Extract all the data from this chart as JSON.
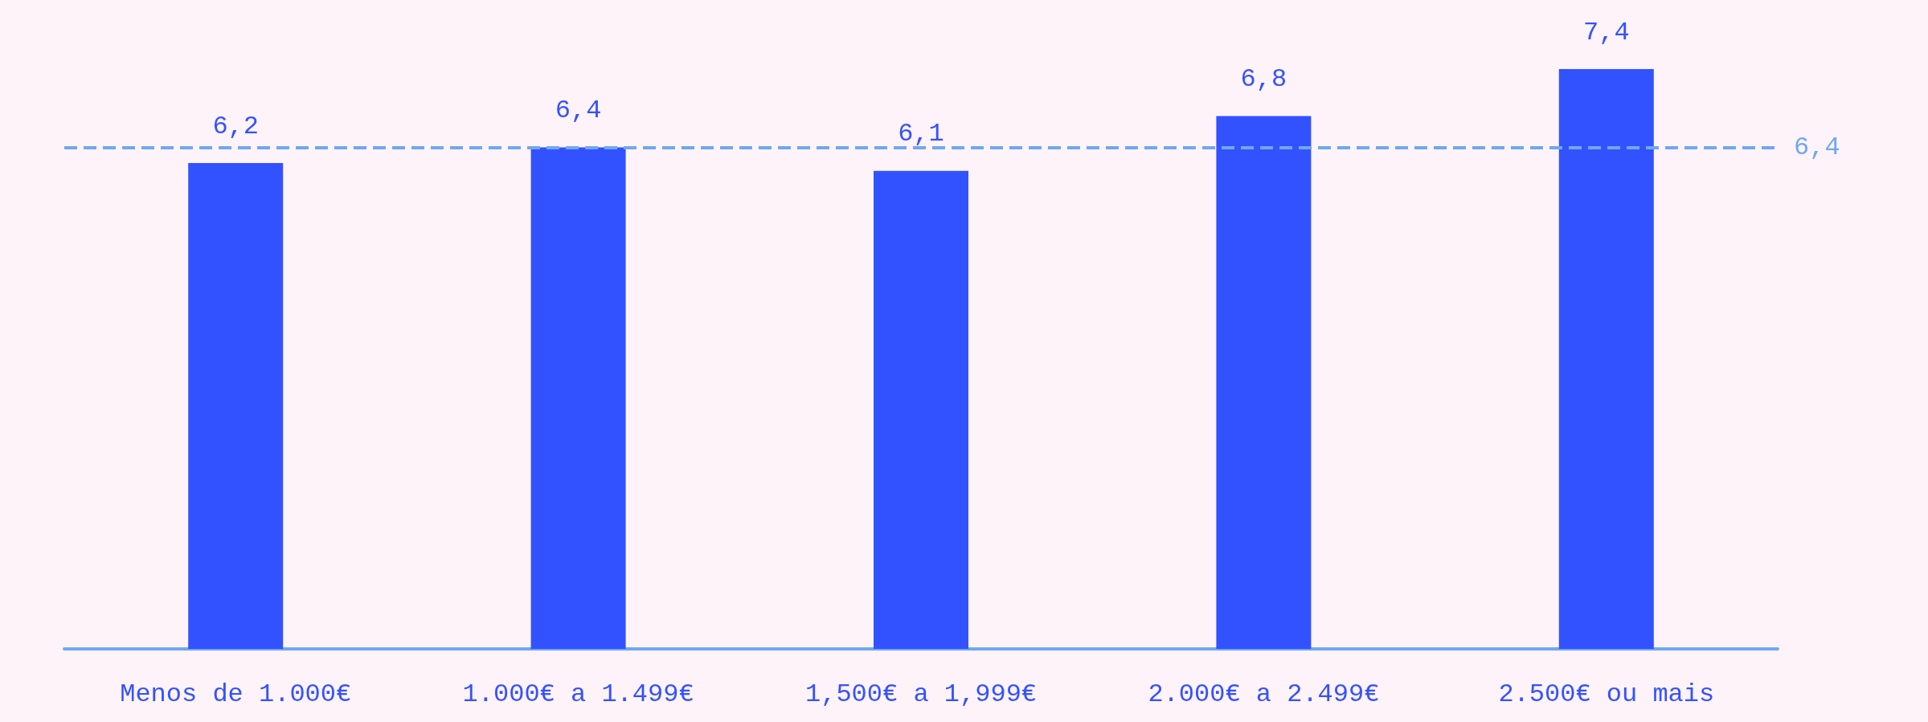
{
  "chart_data": {
    "type": "bar",
    "categories": [
      "Menos de 1.000€",
      "1.000€ a 1.499€",
      "1,500€ a 1,999€",
      "2.000€ a 2.499€",
      "2.500€ ou mais"
    ],
    "values": [
      6.2,
      6.4,
      6.1,
      6.8,
      7.4
    ],
    "value_labels": [
      "6,2",
      "6,4",
      "6,1",
      "6,8",
      "7,4"
    ],
    "color": "#3352ff",
    "ref_lines": [
      {
        "axis": "y",
        "value": 6.4,
        "label": "6,4",
        "color": "#6fa8f0",
        "line_style": "dashed"
      }
    ],
    "marker": "none"
  }
}
